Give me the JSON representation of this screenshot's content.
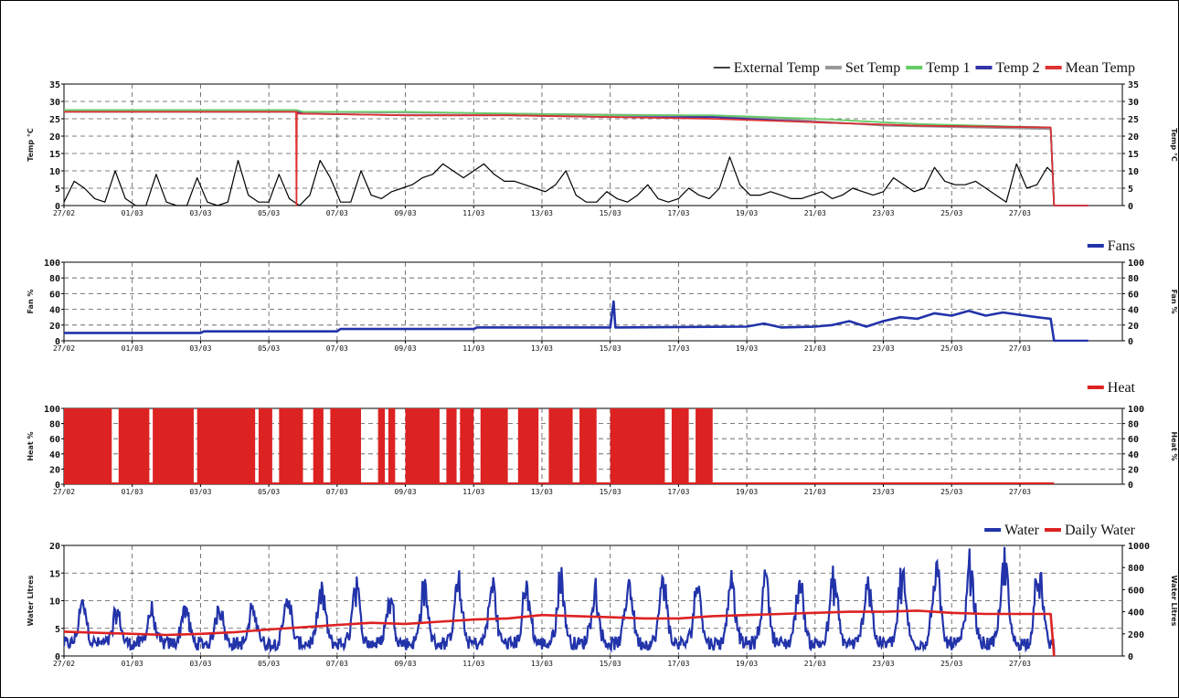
{
  "chart_data": [
    {
      "type": "line",
      "name": "temperature",
      "ylabel": "Temp °C",
      "ylabel_right": "Temp °C",
      "ylim": [
        0,
        35
      ],
      "yticks": [
        0,
        5,
        10,
        15,
        20,
        25,
        30,
        35
      ],
      "grid": true,
      "legend_placement": "top-right",
      "series": [
        {
          "name": "External Temp",
          "color": "#000000",
          "x": [
            0,
            0.3,
            0.6,
            0.9,
            1.2,
            1.5,
            1.8,
            2.1,
            2.4,
            2.7,
            3.0,
            3.3,
            3.6,
            3.9,
            4.2,
            4.5,
            4.8,
            5.1,
            5.4,
            5.7,
            6.0,
            6.3,
            6.6,
            6.9,
            7.2,
            7.5,
            7.8,
            8.1,
            8.4,
            8.7,
            9.0,
            9.3,
            9.6,
            9.9,
            10.2,
            10.5,
            10.8,
            11.1,
            11.4,
            11.7,
            12.0,
            12.3,
            12.6,
            12.9,
            13.2,
            13.5,
            13.8,
            14.1,
            14.4,
            14.7,
            15.0,
            15.3,
            15.6,
            15.9,
            16.2,
            16.5,
            16.8,
            17.1,
            17.4,
            17.7,
            18.0,
            18.3,
            18.6,
            18.9,
            19.2,
            19.5,
            19.8,
            20.1,
            20.4,
            20.7,
            21.0,
            21.3,
            21.6,
            21.9,
            22.2,
            22.5,
            22.8,
            23.1,
            23.4,
            23.7,
            24.0,
            24.3,
            24.6,
            24.9,
            25.2,
            25.5,
            25.8,
            26.1,
            26.4,
            26.7,
            27.0,
            27.3,
            27.6,
            27.9,
            28.2,
            28.5,
            28.8,
            29.0
          ],
          "y": [
            1,
            7,
            5,
            2,
            1,
            10,
            2,
            0,
            0,
            9,
            1,
            0,
            0,
            8,
            1,
            0,
            1,
            13,
            3,
            1,
            1,
            9,
            2,
            0,
            3,
            13,
            8,
            1,
            1,
            10,
            3,
            2,
            4,
            5,
            6,
            8,
            9,
            12,
            10,
            8,
            10,
            12,
            9,
            7,
            7,
            6,
            5,
            4,
            6,
            10,
            3,
            1,
            1,
            4,
            2,
            1,
            3,
            6,
            2,
            1,
            2,
            5,
            3,
            2,
            5,
            14,
            6,
            3,
            3,
            4,
            3,
            2,
            2,
            3,
            4,
            2,
            3,
            5,
            4,
            3,
            4,
            8,
            6,
            4,
            5,
            11,
            7,
            6,
            6,
            7,
            5,
            3,
            1,
            12,
            5,
            6,
            11,
            9
          ]
        },
        {
          "name": "Set Temp",
          "color": "#999999",
          "x": [
            0,
            6.8,
            7,
            13,
            18,
            21,
            24,
            28.9,
            29,
            30
          ],
          "y": [
            27.5,
            27.5,
            27,
            26.5,
            26,
            25,
            23,
            22,
            0,
            0
          ]
        },
        {
          "name": "Temp 1",
          "color": "#66cc66",
          "x": [
            0,
            6.8,
            7,
            10,
            13,
            16,
            19,
            22,
            25,
            28.9,
            29,
            30
          ],
          "y": [
            27.5,
            27.5,
            27,
            27,
            26.5,
            26,
            26,
            25,
            23.5,
            22.5,
            0,
            0
          ]
        },
        {
          "name": "Temp 2",
          "color": "#3333aa",
          "x": [
            0,
            6.8,
            7,
            10,
            13,
            16,
            19,
            22,
            25,
            28.9,
            29,
            30
          ],
          "y": [
            27,
            27,
            26.5,
            26,
            26,
            25.5,
            25.5,
            24,
            23,
            22.5,
            0,
            0
          ]
        },
        {
          "name": "Mean Temp",
          "color": "#dd3333",
          "x": [
            0,
            6.8,
            6.81,
            6.82,
            6.83,
            10,
            13,
            16,
            19,
            22,
            25,
            28.9,
            29,
            30
          ],
          "y": [
            27,
            27,
            0,
            27,
            26.5,
            26,
            26,
            25.5,
            25,
            24,
            23,
            22.5,
            0,
            0
          ]
        }
      ]
    },
    {
      "type": "line",
      "name": "fans",
      "ylabel": "Fan %",
      "ylabel_right": "Fan %",
      "ylim": [
        0,
        100
      ],
      "yticks": [
        0,
        20,
        40,
        60,
        80,
        100
      ],
      "grid": true,
      "legend_placement": "top-right",
      "series": [
        {
          "name": "Fans",
          "color": "#2233aa",
          "x": [
            0,
            4,
            4.1,
            8,
            8.1,
            12,
            12.1,
            16,
            16.1,
            16.15,
            16.2,
            20,
            20.5,
            21,
            22,
            22.5,
            23,
            23.5,
            24,
            24.5,
            25,
            25.5,
            26,
            26.5,
            27,
            27.5,
            28,
            28.5,
            28.9,
            29,
            30
          ],
          "y": [
            10,
            10,
            12,
            12,
            15,
            15,
            17,
            17,
            50,
            17,
            17,
            18,
            22,
            17,
            18,
            20,
            25,
            18,
            25,
            30,
            28,
            35,
            32,
            38,
            32,
            36,
            33,
            30,
            28,
            0,
            0
          ]
        }
      ]
    },
    {
      "type": "area",
      "name": "heat",
      "ylabel": "Heat %",
      "ylabel_right": "Heat %",
      "ylim": [
        0,
        100
      ],
      "yticks": [
        0,
        20,
        40,
        60,
        80,
        100
      ],
      "grid": true,
      "legend_placement": "top-right",
      "series": [
        {
          "name": "Heat",
          "color": "#dd2222",
          "on_intervals": [
            [
              0,
              1.4
            ],
            [
              1.6,
              2.5
            ],
            [
              2.6,
              3.8
            ],
            [
              3.9,
              5.6
            ],
            [
              5.7,
              6.1
            ],
            [
              6.3,
              7.0
            ],
            [
              7.3,
              7.6
            ],
            [
              7.8,
              8.7
            ],
            [
              9.2,
              9.4
            ],
            [
              9.5,
              9.7
            ],
            [
              10.0,
              11.0
            ],
            [
              11.2,
              11.5
            ],
            [
              11.6,
              12.0
            ],
            [
              12.2,
              13.0
            ],
            [
              13.3,
              13.9
            ],
            [
              14.2,
              14.9
            ],
            [
              15.1,
              15.6
            ],
            [
              16.0,
              17.6
            ],
            [
              17.8,
              18.3
            ],
            [
              18.5,
              19.0
            ]
          ]
        }
      ]
    },
    {
      "type": "line",
      "name": "water",
      "ylabel": "Water Litres",
      "ylabel_right": "Water Litres",
      "ylim": [
        0,
        20
      ],
      "yticks": [
        0,
        5,
        10,
        15,
        20
      ],
      "y2lim": [
        0,
        1000
      ],
      "y2ticks": [
        0,
        200,
        400,
        600,
        800,
        1000
      ],
      "grid": true,
      "legend_placement": "top-right",
      "series": [
        {
          "name": "Water",
          "color": "#2233aa",
          "axis": "left",
          "daily_peaks": [
            9,
            7,
            7,
            8,
            9,
            8,
            10,
            11,
            12,
            10,
            12,
            13,
            13,
            12,
            14,
            12,
            14,
            13,
            13,
            14,
            15,
            14,
            14,
            14,
            15,
            16,
            17,
            18,
            16,
            16
          ]
        },
        {
          "name": "Daily Water",
          "color": "#dd2222",
          "axis": "right",
          "x": [
            0,
            3,
            4,
            5,
            6,
            7,
            8,
            9,
            10,
            11,
            12,
            13,
            14,
            15,
            16,
            17,
            18,
            19,
            20,
            21,
            22,
            23,
            24,
            25,
            26,
            27,
            28,
            28.9,
            29
          ],
          "y": [
            220,
            190,
            200,
            215,
            240,
            260,
            280,
            300,
            290,
            310,
            330,
            340,
            370,
            360,
            350,
            340,
            340,
            360,
            370,
            380,
            390,
            400,
            400,
            410,
            390,
            380,
            380,
            380,
            0
          ]
        }
      ]
    }
  ],
  "x_axis": {
    "ticks": [
      0,
      2,
      4,
      6,
      8,
      10,
      12,
      14,
      16,
      18,
      20,
      22,
      24,
      26,
      28
    ],
    "tick_labels": [
      "27/02",
      "01/03",
      "03/03",
      "05/03",
      "07/03",
      "09/03",
      "11/03",
      "13/03",
      "15/03",
      "17/03",
      "19/03",
      "21/03",
      "23/03",
      "25/03",
      "27/03"
    ],
    "xlim": [
      0,
      31
    ]
  }
}
